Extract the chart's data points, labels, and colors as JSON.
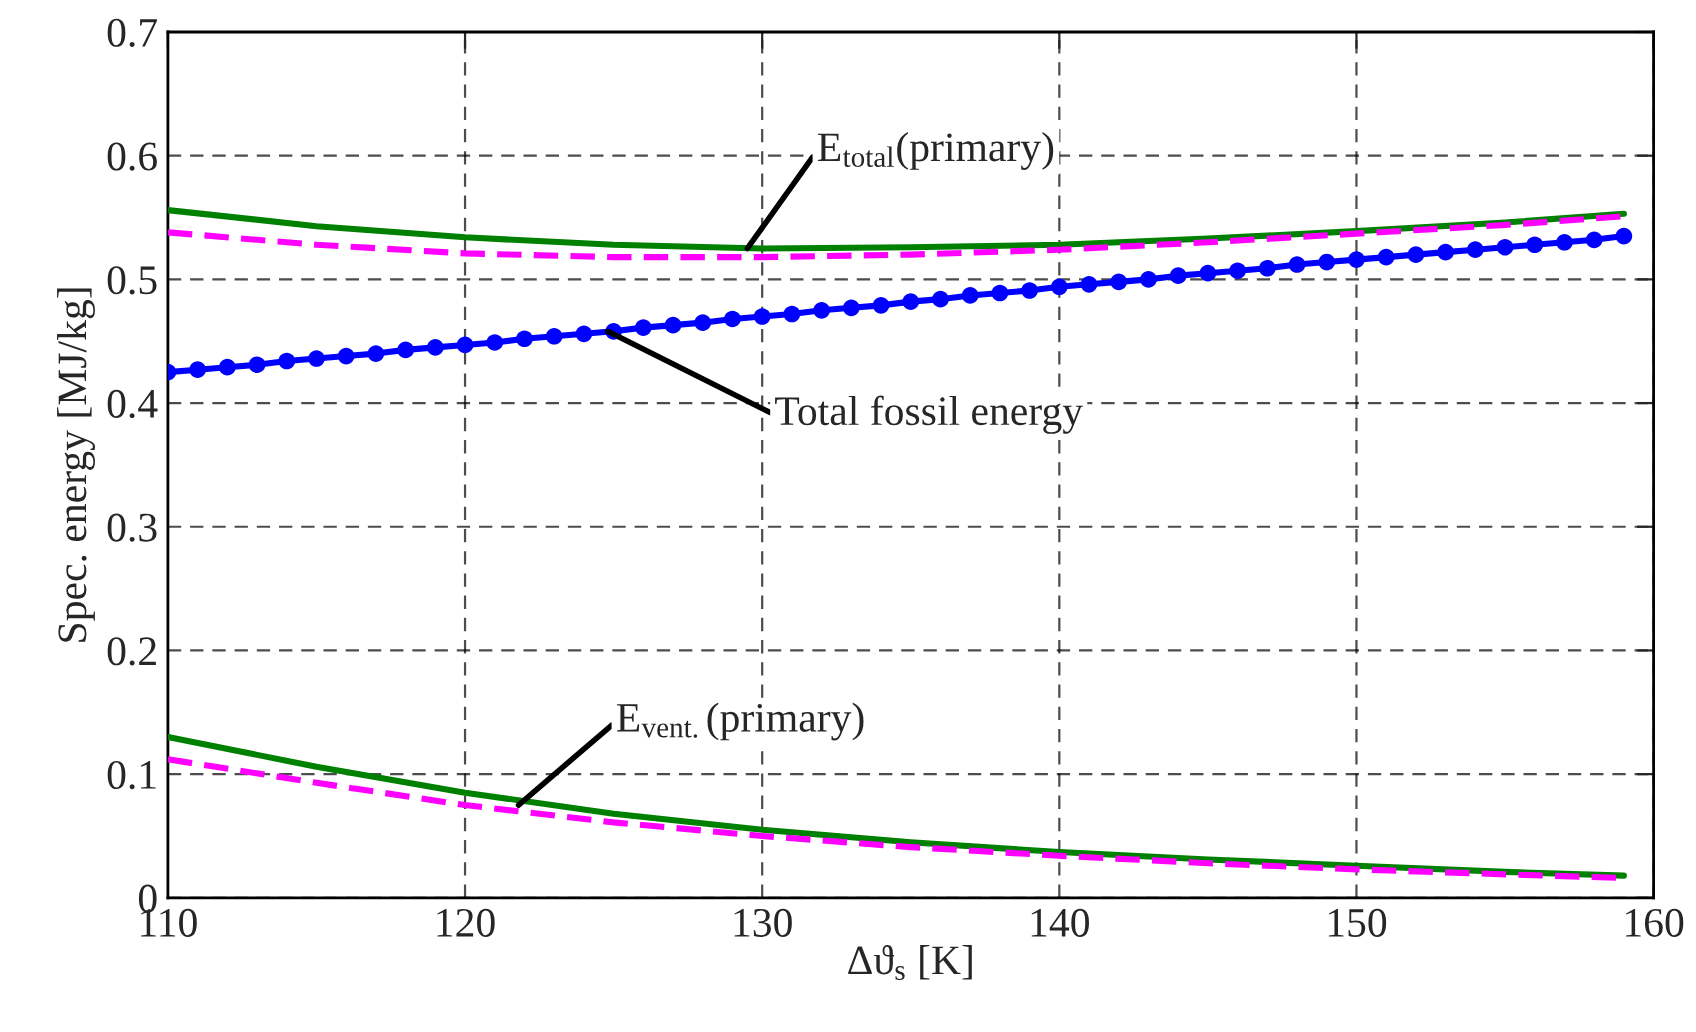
{
  "chart_data": {
    "type": "line",
    "xlabel": "Δϑ$_{s}$ [K]",
    "ylabel": "Spec. energy [MJ/kg]",
    "xlim": [
      110,
      160
    ],
    "ylim": [
      0,
      0.7
    ],
    "xticks": [
      110,
      120,
      130,
      140,
      150,
      160
    ],
    "yticks": [
      0,
      0.1,
      0.2,
      0.3,
      0.4,
      0.5,
      0.6,
      0.7
    ],
    "grid": true,
    "legend": false,
    "series": [
      {
        "color": "#008000",
        "line_style": "solid",
        "marker": "none",
        "x": [
          110,
          115,
          120,
          125,
          130,
          135,
          140,
          145,
          150,
          155,
          159
        ],
        "values": [
          0.556,
          0.543,
          0.534,
          0.528,
          0.525,
          0.526,
          0.528,
          0.533,
          0.539,
          0.546,
          0.553
        ]
      },
      {
        "color": "#ff00ff",
        "line_style": "dashed",
        "marker": "none",
        "x": [
          110,
          115,
          120,
          125,
          130,
          135,
          140,
          145,
          150,
          155,
          159
        ],
        "values": [
          0.538,
          0.528,
          0.521,
          0.518,
          0.518,
          0.52,
          0.524,
          0.53,
          0.537,
          0.544,
          0.551
        ]
      },
      {
        "color": "#0000ff",
        "line_style": "solid",
        "marker": "circle",
        "x": [
          110,
          111,
          112,
          113,
          114,
          115,
          116,
          117,
          118,
          119,
          120,
          121,
          122,
          123,
          124,
          125,
          126,
          127,
          128,
          129,
          130,
          131,
          132,
          133,
          134,
          135,
          136,
          137,
          138,
          139,
          140,
          141,
          142,
          143,
          144,
          145,
          146,
          147,
          148,
          149,
          150,
          151,
          152,
          153,
          154,
          155,
          156,
          157,
          158,
          159
        ],
        "values": [
          0.425,
          0.427,
          0.429,
          0.431,
          0.434,
          0.436,
          0.438,
          0.44,
          0.443,
          0.445,
          0.447,
          0.449,
          0.452,
          0.454,
          0.456,
          0.458,
          0.461,
          0.463,
          0.465,
          0.468,
          0.47,
          0.472,
          0.475,
          0.477,
          0.479,
          0.482,
          0.484,
          0.487,
          0.489,
          0.491,
          0.494,
          0.496,
          0.498,
          0.5,
          0.503,
          0.505,
          0.507,
          0.509,
          0.512,
          0.514,
          0.516,
          0.518,
          0.52,
          0.522,
          0.524,
          0.526,
          0.528,
          0.53,
          0.532,
          0.535
        ]
      },
      {
        "color": "#008000",
        "line_style": "solid",
        "marker": "none",
        "x": [
          110,
          115,
          120,
          125,
          130,
          135,
          140,
          145,
          150,
          155,
          159
        ],
        "values": [
          0.13,
          0.106,
          0.085,
          0.068,
          0.055,
          0.045,
          0.037,
          0.031,
          0.026,
          0.021,
          0.018
        ]
      },
      {
        "color": "#ff00ff",
        "line_style": "dashed",
        "marker": "none",
        "x": [
          110,
          115,
          120,
          125,
          130,
          135,
          140,
          145,
          150,
          155,
          159
        ],
        "values": [
          0.112,
          0.093,
          0.075,
          0.061,
          0.05,
          0.041,
          0.034,
          0.028,
          0.023,
          0.019,
          0.016
        ]
      }
    ],
    "annotations": [
      {
        "text": "E$_{total}$(primary)",
        "x": 129.5,
        "y": 0.525
      },
      {
        "text": "Total fossil energy",
        "x": 124.8,
        "y": 0.458
      },
      {
        "text": "E$_{vent.}$(primary)",
        "x": 121.8,
        "y": 0.075
      }
    ]
  }
}
